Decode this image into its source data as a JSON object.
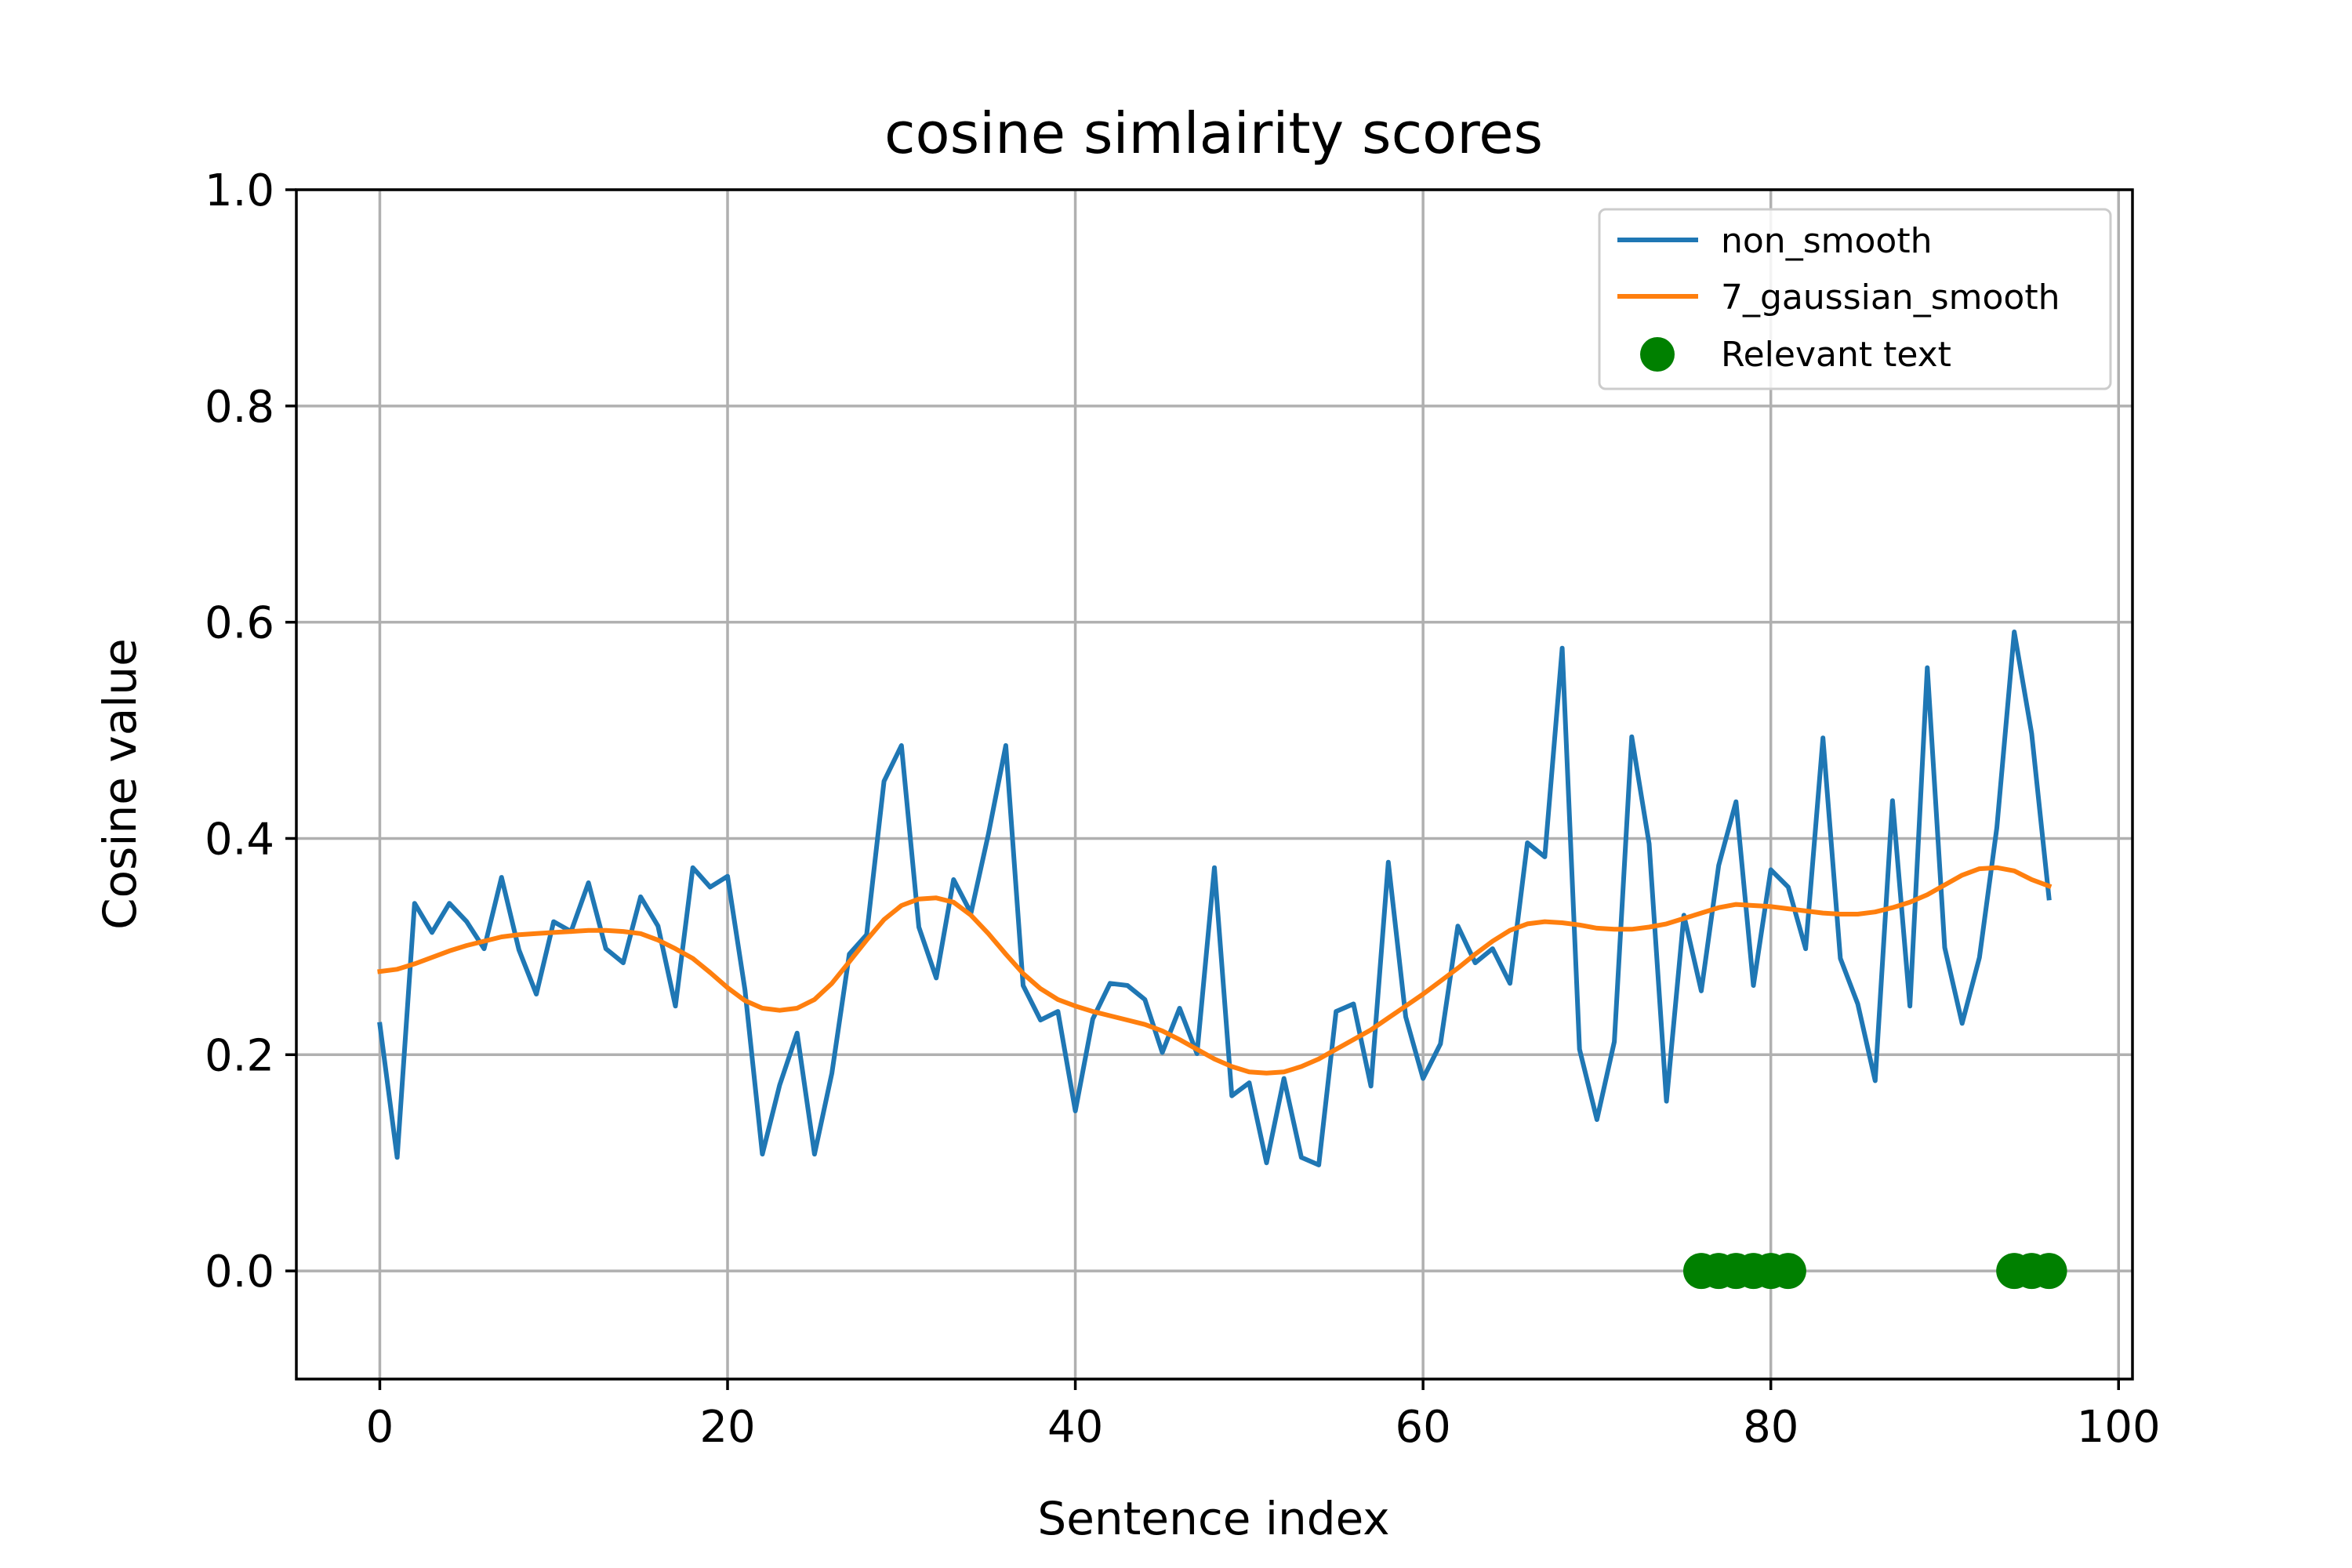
{
  "chart_data": {
    "type": "line",
    "title": "cosine simlairity scores",
    "xlabel": "Sentence index",
    "ylabel": "Cosine value",
    "xlim": [
      -4.8,
      100.8
    ],
    "ylim": [
      -0.1,
      1.0
    ],
    "xticks": [
      0,
      20,
      40,
      60,
      80,
      100
    ],
    "yticks": [
      0.0,
      0.2,
      0.4,
      0.6,
      0.8,
      1.0
    ],
    "xtick_labels": [
      "0",
      "20",
      "40",
      "60",
      "80",
      "100"
    ],
    "ytick_labels": [
      "0.0",
      "0.2",
      "0.4",
      "0.6",
      "0.8",
      "1.0"
    ],
    "grid": true,
    "legend_position": "top-right",
    "x": [
      0,
      1,
      2,
      3,
      4,
      5,
      6,
      7,
      8,
      9,
      10,
      11,
      12,
      13,
      14,
      15,
      16,
      17,
      18,
      19,
      20,
      21,
      22,
      23,
      24,
      25,
      26,
      27,
      28,
      29,
      30,
      31,
      32,
      33,
      34,
      35,
      36,
      37,
      38,
      39,
      40,
      41,
      42,
      43,
      44,
      45,
      46,
      47,
      48,
      49,
      50,
      51,
      52,
      53,
      54,
      55,
      56,
      57,
      58,
      59,
      60,
      61,
      62,
      63,
      64,
      65,
      66,
      67,
      68,
      69,
      70,
      71,
      72,
      73,
      74,
      75,
      76,
      77,
      78,
      79,
      80,
      81,
      82,
      83,
      84,
      85,
      86,
      87,
      88,
      89,
      90,
      91,
      92,
      93,
      94,
      95,
      96
    ],
    "series": [
      {
        "name": "non_smooth",
        "color": "#1f77b4",
        "values": [
          0.228,
          0.105,
          0.34,
          0.313,
          0.34,
          0.323,
          0.298,
          0.364,
          0.297,
          0.256,
          0.323,
          0.314,
          0.359,
          0.298,
          0.285,
          0.346,
          0.319,
          0.245,
          0.373,
          0.355,
          0.365,
          0.26,
          0.108,
          0.172,
          0.22,
          0.108,
          0.183,
          0.293,
          0.311,
          0.453,
          0.486,
          0.318,
          0.271,
          0.362,
          0.331,
          0.404,
          0.486,
          0.264,
          0.232,
          0.24,
          0.148,
          0.233,
          0.266,
          0.264,
          0.251,
          0.202,
          0.243,
          0.201,
          0.373,
          0.162,
          0.174,
          0.1,
          0.178,
          0.105,
          0.098,
          0.24,
          0.247,
          0.171,
          0.378,
          0.235,
          0.178,
          0.21,
          0.319,
          0.285,
          0.298,
          0.266,
          0.396,
          0.383,
          0.576,
          0.205,
          0.14,
          0.212,
          0.494,
          0.395,
          0.157,
          0.329,
          0.259,
          0.375,
          0.434,
          0.264,
          0.371,
          0.355,
          0.298,
          0.493,
          0.289,
          0.247,
          0.176,
          0.435,
          0.245,
          0.558,
          0.299,
          0.229,
          0.29,
          0.41,
          0.591,
          0.497,
          0.345
        ]
      },
      {
        "name": "7_gaussian_smooth",
        "color": "#ff7f0e",
        "values": [
          0.277,
          0.279,
          0.284,
          0.29,
          0.296,
          0.301,
          0.305,
          0.309,
          0.311,
          0.312,
          0.313,
          0.314,
          0.315,
          0.315,
          0.314,
          0.312,
          0.306,
          0.298,
          0.289,
          0.276,
          0.262,
          0.25,
          0.243,
          0.241,
          0.243,
          0.251,
          0.266,
          0.286,
          0.306,
          0.325,
          0.338,
          0.344,
          0.345,
          0.341,
          0.329,
          0.312,
          0.293,
          0.275,
          0.261,
          0.251,
          0.245,
          0.24,
          0.236,
          0.232,
          0.228,
          0.222,
          0.214,
          0.205,
          0.196,
          0.189,
          0.184,
          0.183,
          0.184,
          0.189,
          0.196,
          0.205,
          0.214,
          0.223,
          0.234,
          0.245,
          0.256,
          0.268,
          0.28,
          0.293,
          0.305,
          0.315,
          0.321,
          0.323,
          0.322,
          0.32,
          0.317,
          0.316,
          0.316,
          0.318,
          0.321,
          0.326,
          0.331,
          0.336,
          0.339,
          0.338,
          0.337,
          0.335,
          0.333,
          0.331,
          0.33,
          0.33,
          0.332,
          0.336,
          0.341,
          0.348,
          0.357,
          0.366,
          0.372,
          0.373,
          0.37,
          0.362,
          0.356
        ]
      }
    ],
    "scatter": {
      "name": "Relevant text",
      "color": "#008000",
      "x": [
        76,
        77,
        78,
        79,
        80,
        81,
        94,
        95,
        96
      ],
      "y": [
        0,
        0,
        0,
        0,
        0,
        0,
        0,
        0,
        0
      ]
    },
    "legend": [
      {
        "label": "non_smooth",
        "kind": "line",
        "color": "#1f77b4"
      },
      {
        "label": "7_gaussian_smooth",
        "kind": "line",
        "color": "#ff7f0e"
      },
      {
        "label": "Relevant text",
        "kind": "marker",
        "color": "#008000"
      }
    ]
  }
}
